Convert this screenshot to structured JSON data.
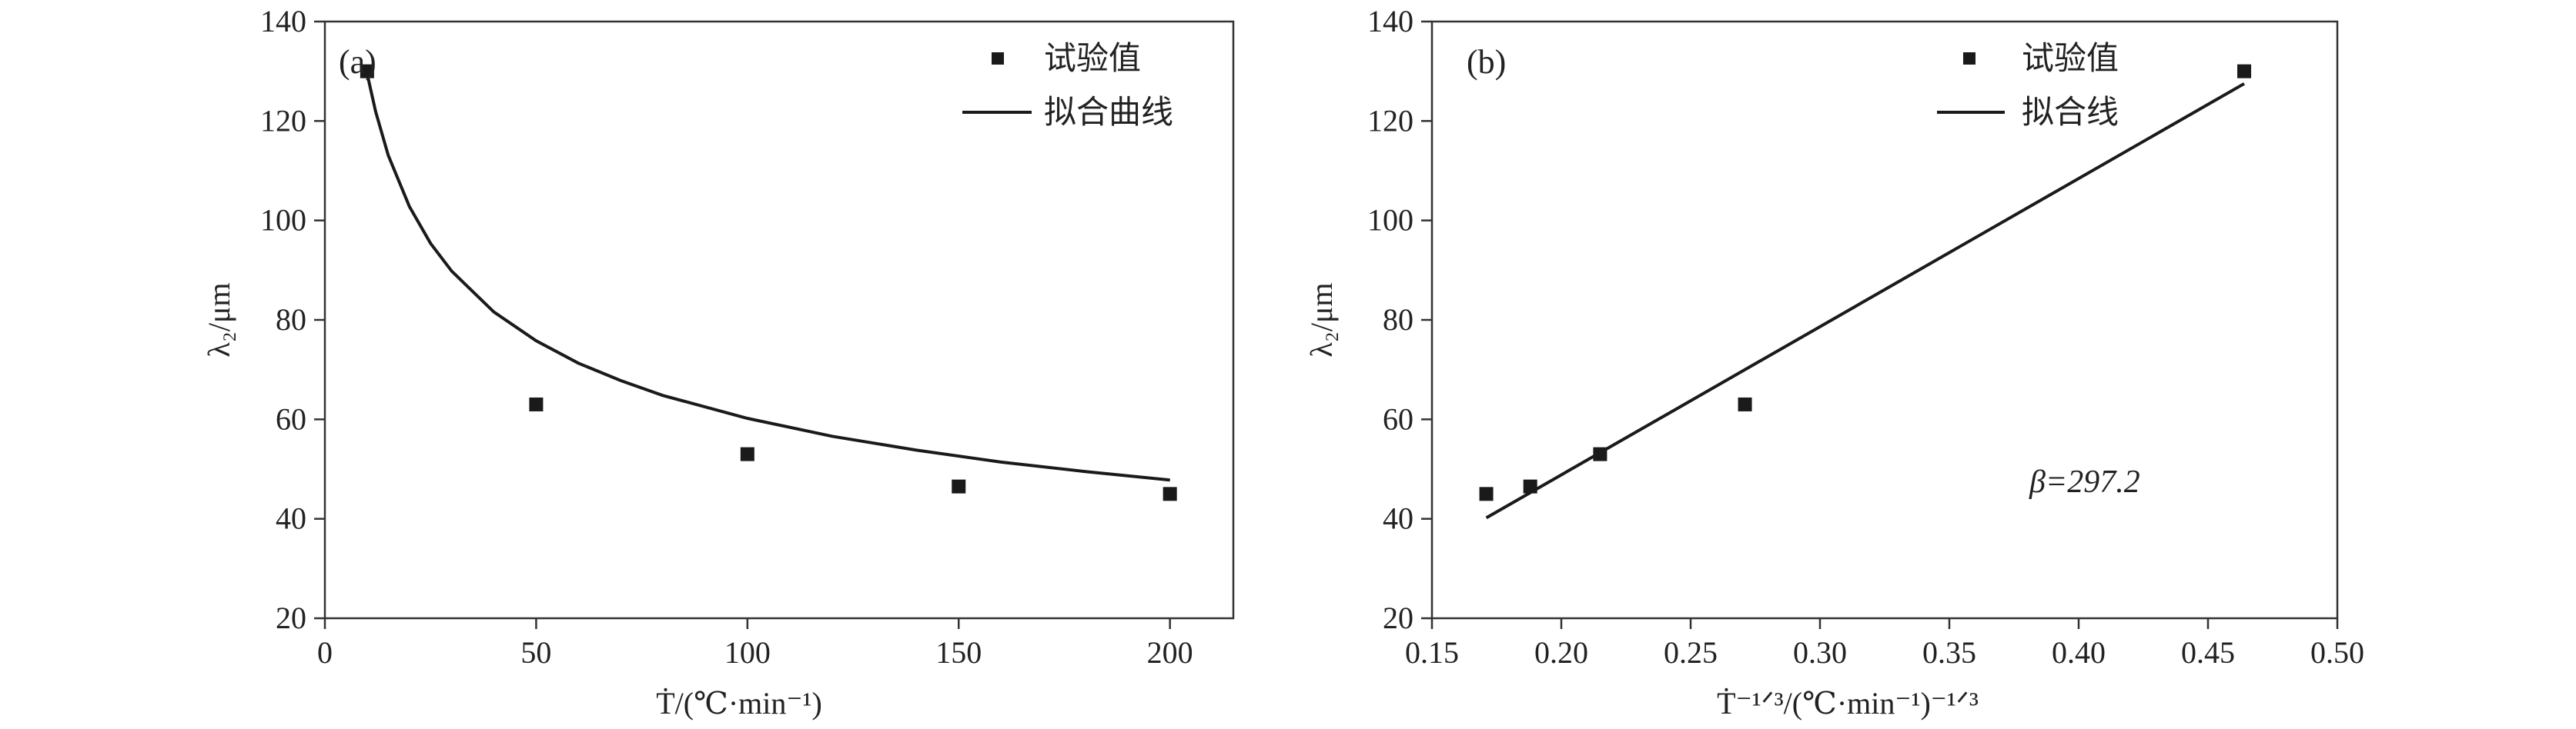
{
  "chart_data": [
    {
      "type": "scatter",
      "panel_label": "(a)",
      "xlim": [
        0,
        215
      ],
      "ylim": [
        20,
        140
      ],
      "xticks": [
        0,
        50,
        100,
        150,
        200
      ],
      "yticks": [
        20,
        40,
        60,
        80,
        100,
        120,
        140
      ],
      "xlabel": "Ṫ/(℃·min⁻¹)",
      "ylabel": "λ₂/μm",
      "series": [
        {
          "name": "试验值",
          "kind": "points",
          "x": [
            10,
            50,
            100,
            150,
            200
          ],
          "y": [
            130,
            63,
            53,
            46.5,
            45
          ]
        },
        {
          "name": "拟合曲线",
          "kind": "line",
          "x": [
            10,
            12,
            15,
            20,
            25,
            30,
            40,
            50,
            60,
            70,
            80,
            100,
            120,
            140,
            160,
            180,
            200
          ],
          "y": [
            129.5,
            121.9,
            113.1,
            102.8,
            95.4,
            89.8,
            81.6,
            75.8,
            71.3,
            67.8,
            64.8,
            60.2,
            56.6,
            53.8,
            51.4,
            49.5,
            47.8
          ]
        }
      ],
      "legend": {
        "position": "top-right"
      }
    },
    {
      "type": "scatter",
      "panel_label": "(b)",
      "xlim": [
        0.15,
        0.5
      ],
      "ylim": [
        20,
        140
      ],
      "xticks": [
        0.15,
        0.2,
        0.25,
        0.3,
        0.35,
        0.4,
        0.45,
        0.5
      ],
      "yticks": [
        20,
        40,
        60,
        80,
        100,
        120,
        140
      ],
      "xlabel": "Ṫ⁻¹ᐟ³/(℃·min⁻¹)⁻¹ᐟ³",
      "ylabel": "λ₂/μm",
      "series": [
        {
          "name": "试验值",
          "kind": "points",
          "x": [
            0.171,
            0.188,
            0.215,
            0.271,
            0.464
          ],
          "y": [
            45,
            46.5,
            53,
            63,
            130
          ]
        },
        {
          "name": "拟合线",
          "kind": "line",
          "x": [
            0.171,
            0.464
          ],
          "y": [
            40.2,
            127.5
          ]
        }
      ],
      "annotation": "β=297.2",
      "legend": {
        "position": "top-right"
      }
    }
  ]
}
